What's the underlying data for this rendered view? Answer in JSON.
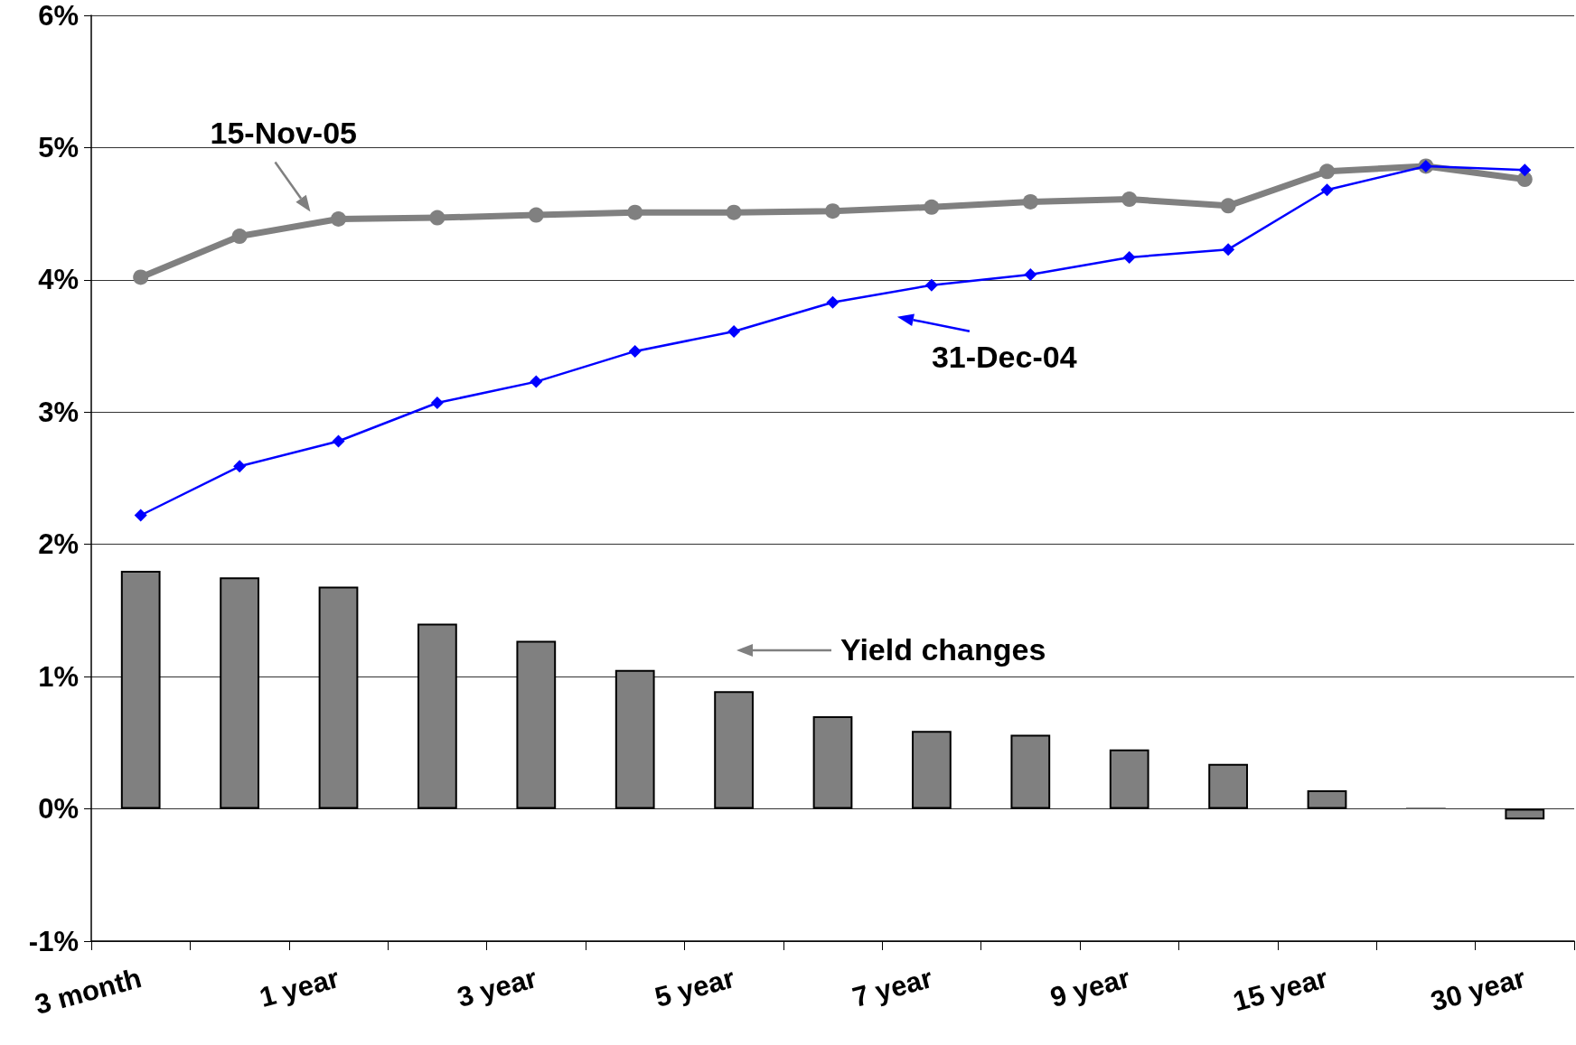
{
  "chart_data": {
    "type": "bar",
    "categories": [
      "3 month",
      null,
      "1 year",
      null,
      "3 year",
      null,
      "5 year",
      null,
      "7 year",
      null,
      "9 year",
      null,
      "15 year",
      null,
      "30 year"
    ],
    "series": [
      {
        "color": "#808080",
        "values": [
          1.8,
          1.75,
          1.68,
          1.4,
          1.27,
          1.05,
          0.89,
          0.7,
          0.59,
          0.56,
          0.45,
          0.34,
          0.14,
          0.01,
          -0.08
        ]
      },
      {
        "type": "line",
        "color": "#808080",
        "marker": "circle",
        "values": [
          4.02,
          4.33,
          4.46,
          4.47,
          4.49,
          4.51,
          4.51,
          4.52,
          4.55,
          4.59,
          4.61,
          4.56,
          4.82,
          4.86,
          4.76
        ]
      },
      {
        "type": "line",
        "color": "#0000ff",
        "marker": "diamond",
        "values": [
          2.22,
          2.59,
          2.78,
          3.07,
          3.23,
          3.46,
          3.61,
          3.83,
          3.96,
          4.04,
          4.17,
          4.23,
          4.68,
          4.86,
          4.83
        ]
      }
    ],
    "ylim": [
      -1,
      6
    ],
    "yticks": [
      {
        "value": -1,
        "label": "-1%"
      },
      {
        "value": 0,
        "label": "0%"
      },
      {
        "value": 1,
        "label": "1%"
      },
      {
        "value": 2,
        "label": "2%"
      },
      {
        "value": 3,
        "label": "3%"
      },
      {
        "value": 4,
        "label": "4%"
      },
      {
        "value": 5,
        "label": "5%"
      },
      {
        "value": 6,
        "label": "6%"
      }
    ],
    "grid": "y",
    "annotations": [
      {
        "text": "15-Nov-05",
        "x": "1 year",
        "y": 4.46
      },
      {
        "text": "31-Dec-04",
        "x": "7 year",
        "y": 3.96
      },
      "Yield changes"
    ]
  }
}
